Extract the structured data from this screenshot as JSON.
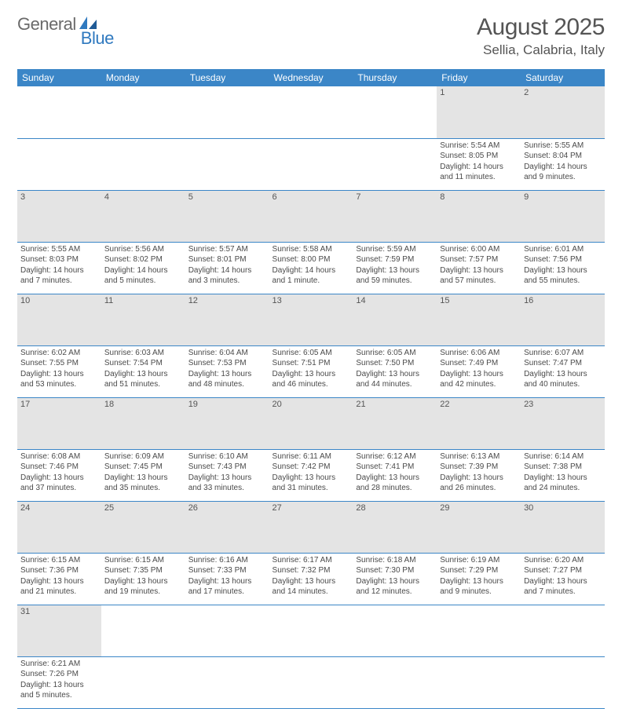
{
  "brand": {
    "general": "General",
    "blue": "Blue"
  },
  "title": {
    "month": "August 2025",
    "location": "Sellia, Calabria, Italy"
  },
  "colors": {
    "header_bg": "#3b86c7",
    "header_fg": "#ffffff",
    "daynum_bg": "#e4e4e4",
    "text": "#4a4a4a",
    "rule": "#3b86c7"
  },
  "day_headers": [
    "Sunday",
    "Monday",
    "Tuesday",
    "Wednesday",
    "Thursday",
    "Friday",
    "Saturday"
  ],
  "weeks": [
    {
      "nums": [
        "",
        "",
        "",
        "",
        "",
        "1",
        "2"
      ],
      "cells": [
        null,
        null,
        null,
        null,
        null,
        {
          "sr": "Sunrise: 5:54 AM",
          "ss": "Sunset: 8:05 PM",
          "dl": "Daylight: 14 hours and 11 minutes."
        },
        {
          "sr": "Sunrise: 5:55 AM",
          "ss": "Sunset: 8:04 PM",
          "dl": "Daylight: 14 hours and 9 minutes."
        }
      ]
    },
    {
      "nums": [
        "3",
        "4",
        "5",
        "6",
        "7",
        "8",
        "9"
      ],
      "cells": [
        {
          "sr": "Sunrise: 5:55 AM",
          "ss": "Sunset: 8:03 PM",
          "dl": "Daylight: 14 hours and 7 minutes."
        },
        {
          "sr": "Sunrise: 5:56 AM",
          "ss": "Sunset: 8:02 PM",
          "dl": "Daylight: 14 hours and 5 minutes."
        },
        {
          "sr": "Sunrise: 5:57 AM",
          "ss": "Sunset: 8:01 PM",
          "dl": "Daylight: 14 hours and 3 minutes."
        },
        {
          "sr": "Sunrise: 5:58 AM",
          "ss": "Sunset: 8:00 PM",
          "dl": "Daylight: 14 hours and 1 minute."
        },
        {
          "sr": "Sunrise: 5:59 AM",
          "ss": "Sunset: 7:59 PM",
          "dl": "Daylight: 13 hours and 59 minutes."
        },
        {
          "sr": "Sunrise: 6:00 AM",
          "ss": "Sunset: 7:57 PM",
          "dl": "Daylight: 13 hours and 57 minutes."
        },
        {
          "sr": "Sunrise: 6:01 AM",
          "ss": "Sunset: 7:56 PM",
          "dl": "Daylight: 13 hours and 55 minutes."
        }
      ]
    },
    {
      "nums": [
        "10",
        "11",
        "12",
        "13",
        "14",
        "15",
        "16"
      ],
      "cells": [
        {
          "sr": "Sunrise: 6:02 AM",
          "ss": "Sunset: 7:55 PM",
          "dl": "Daylight: 13 hours and 53 minutes."
        },
        {
          "sr": "Sunrise: 6:03 AM",
          "ss": "Sunset: 7:54 PM",
          "dl": "Daylight: 13 hours and 51 minutes."
        },
        {
          "sr": "Sunrise: 6:04 AM",
          "ss": "Sunset: 7:53 PM",
          "dl": "Daylight: 13 hours and 48 minutes."
        },
        {
          "sr": "Sunrise: 6:05 AM",
          "ss": "Sunset: 7:51 PM",
          "dl": "Daylight: 13 hours and 46 minutes."
        },
        {
          "sr": "Sunrise: 6:05 AM",
          "ss": "Sunset: 7:50 PM",
          "dl": "Daylight: 13 hours and 44 minutes."
        },
        {
          "sr": "Sunrise: 6:06 AM",
          "ss": "Sunset: 7:49 PM",
          "dl": "Daylight: 13 hours and 42 minutes."
        },
        {
          "sr": "Sunrise: 6:07 AM",
          "ss": "Sunset: 7:47 PM",
          "dl": "Daylight: 13 hours and 40 minutes."
        }
      ]
    },
    {
      "nums": [
        "17",
        "18",
        "19",
        "20",
        "21",
        "22",
        "23"
      ],
      "cells": [
        {
          "sr": "Sunrise: 6:08 AM",
          "ss": "Sunset: 7:46 PM",
          "dl": "Daylight: 13 hours and 37 minutes."
        },
        {
          "sr": "Sunrise: 6:09 AM",
          "ss": "Sunset: 7:45 PM",
          "dl": "Daylight: 13 hours and 35 minutes."
        },
        {
          "sr": "Sunrise: 6:10 AM",
          "ss": "Sunset: 7:43 PM",
          "dl": "Daylight: 13 hours and 33 minutes."
        },
        {
          "sr": "Sunrise: 6:11 AM",
          "ss": "Sunset: 7:42 PM",
          "dl": "Daylight: 13 hours and 31 minutes."
        },
        {
          "sr": "Sunrise: 6:12 AM",
          "ss": "Sunset: 7:41 PM",
          "dl": "Daylight: 13 hours and 28 minutes."
        },
        {
          "sr": "Sunrise: 6:13 AM",
          "ss": "Sunset: 7:39 PM",
          "dl": "Daylight: 13 hours and 26 minutes."
        },
        {
          "sr": "Sunrise: 6:14 AM",
          "ss": "Sunset: 7:38 PM",
          "dl": "Daylight: 13 hours and 24 minutes."
        }
      ]
    },
    {
      "nums": [
        "24",
        "25",
        "26",
        "27",
        "28",
        "29",
        "30"
      ],
      "cells": [
        {
          "sr": "Sunrise: 6:15 AM",
          "ss": "Sunset: 7:36 PM",
          "dl": "Daylight: 13 hours and 21 minutes."
        },
        {
          "sr": "Sunrise: 6:15 AM",
          "ss": "Sunset: 7:35 PM",
          "dl": "Daylight: 13 hours and 19 minutes."
        },
        {
          "sr": "Sunrise: 6:16 AM",
          "ss": "Sunset: 7:33 PM",
          "dl": "Daylight: 13 hours and 17 minutes."
        },
        {
          "sr": "Sunrise: 6:17 AM",
          "ss": "Sunset: 7:32 PM",
          "dl": "Daylight: 13 hours and 14 minutes."
        },
        {
          "sr": "Sunrise: 6:18 AM",
          "ss": "Sunset: 7:30 PM",
          "dl": "Daylight: 13 hours and 12 minutes."
        },
        {
          "sr": "Sunrise: 6:19 AM",
          "ss": "Sunset: 7:29 PM",
          "dl": "Daylight: 13 hours and 9 minutes."
        },
        {
          "sr": "Sunrise: 6:20 AM",
          "ss": "Sunset: 7:27 PM",
          "dl": "Daylight: 13 hours and 7 minutes."
        }
      ]
    },
    {
      "nums": [
        "31",
        "",
        "",
        "",
        "",
        "",
        ""
      ],
      "cells": [
        {
          "sr": "Sunrise: 6:21 AM",
          "ss": "Sunset: 7:26 PM",
          "dl": "Daylight: 13 hours and 5 minutes."
        },
        null,
        null,
        null,
        null,
        null,
        null
      ]
    }
  ]
}
